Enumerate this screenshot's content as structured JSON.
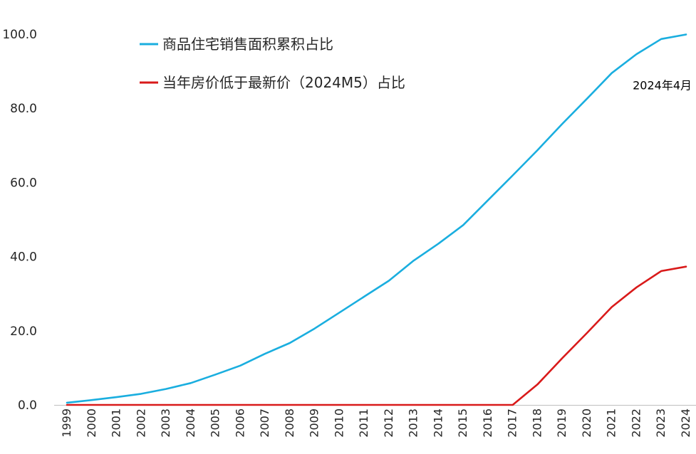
{
  "chart_data": {
    "type": "line",
    "title": "",
    "xlabel": "",
    "ylabel": "",
    "ylim": [
      0,
      100
    ],
    "yticks": [
      "0.0",
      "20.0",
      "40.0",
      "60.0",
      "80.0",
      "100.0"
    ],
    "grid": false,
    "legend_position": "top-left",
    "categories": [
      "1999",
      "2000",
      "2001",
      "2002",
      "2003",
      "2004",
      "2005",
      "2006",
      "2007",
      "2008",
      "2009",
      "2010",
      "2011",
      "2012",
      "2013",
      "2014",
      "2015",
      "2016",
      "2017",
      "2018",
      "2019",
      "2020",
      "2021",
      "2022",
      "2023",
      "2024"
    ],
    "series": [
      {
        "name": "商品住宅销售面积累积占比",
        "color": "#1AAEDF",
        "values": [
          0.6,
          1.3,
          2.1,
          3.0,
          4.3,
          5.9,
          8.2,
          10.6,
          13.8,
          16.7,
          20.6,
          24.9,
          29.2,
          33.5,
          38.9,
          43.5,
          48.5,
          55.2,
          61.9,
          68.7,
          75.8,
          82.6,
          89.5,
          94.6,
          98.7,
          99.9
        ]
      },
      {
        "name": "当年房价低于最新价（2024M5）占比",
        "color": "#D91A1A",
        "values": [
          0,
          0,
          0,
          0,
          0,
          0,
          0,
          0,
          0,
          0,
          0,
          0,
          0,
          0,
          0,
          0,
          0,
          0,
          0,
          5.5,
          12.6,
          19.4,
          26.4,
          31.7,
          36.1,
          37.3
        ]
      }
    ],
    "annotations": [
      {
        "text": "2024年4月",
        "series_index": 0,
        "category": "2024"
      }
    ]
  }
}
